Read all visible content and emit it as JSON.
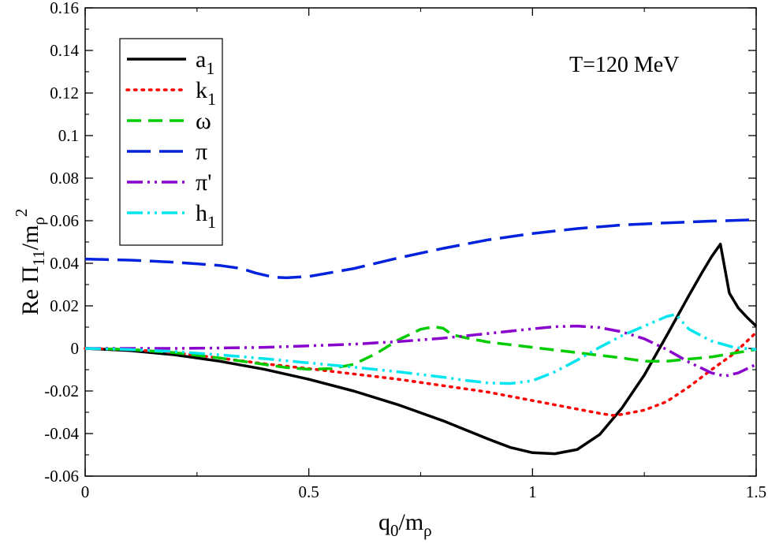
{
  "chart_data": {
    "type": "line",
    "title": "",
    "xlabel": "q0/mρ",
    "ylabel": "Re Π11/mρ2",
    "xlim": [
      0,
      1.5
    ],
    "ylim": [
      -0.06,
      0.16
    ],
    "grid": false,
    "legend_position": "top-left",
    "xticks": [
      0,
      0.5,
      1,
      1.5
    ],
    "xtick_labels": [
      "0",
      "0.5",
      "1",
      "1.5"
    ],
    "yticks": [
      -0.06,
      -0.04,
      -0.02,
      0,
      0.02,
      0.04,
      0.06,
      0.08,
      0.1,
      0.12,
      0.14,
      0.16
    ],
    "ytick_labels": [
      "-0.06",
      "-0.04",
      "-0.02",
      "0",
      "0.02",
      "0.04",
      "0.06",
      "0.08",
      "0.1",
      "0.12",
      "0.14",
      "0.16"
    ],
    "annotation": "T=120 MeV",
    "series": [
      {
        "name": "a1",
        "label_main": "a",
        "label_sub": "1",
        "color": "#000000",
        "dash": "solid",
        "x": [
          0,
          0.1,
          0.2,
          0.3,
          0.4,
          0.5,
          0.6,
          0.7,
          0.8,
          0.9,
          0.95,
          1.0,
          1.05,
          1.1,
          1.15,
          1.2,
          1.25,
          1.3,
          1.35,
          1.38,
          1.4,
          1.42,
          1.44,
          1.46,
          1.48,
          1.5
        ],
        "y": [
          0,
          -0.001,
          -0.003,
          -0.006,
          -0.0098,
          -0.0145,
          -0.02,
          -0.0265,
          -0.034,
          -0.0425,
          -0.0465,
          -0.049,
          -0.0495,
          -0.0475,
          -0.0405,
          -0.028,
          -0.0125,
          0.006,
          0.025,
          0.036,
          0.043,
          0.049,
          0.026,
          0.019,
          0.0145,
          0.0105
        ]
      },
      {
        "name": "k1",
        "label_main": "k",
        "label_sub": "1",
        "color": "#ff0000",
        "dash": "dot",
        "x": [
          0,
          0.1,
          0.2,
          0.3,
          0.4,
          0.5,
          0.6,
          0.7,
          0.8,
          0.9,
          1.0,
          1.05,
          1.1,
          1.15,
          1.18,
          1.2,
          1.25,
          1.3,
          1.35,
          1.4,
          1.45,
          1.5
        ],
        "y": [
          0,
          -0.0005,
          -0.002,
          -0.0045,
          -0.0072,
          -0.0095,
          -0.012,
          -0.0145,
          -0.0175,
          -0.0205,
          -0.0245,
          -0.0265,
          -0.0285,
          -0.0305,
          -0.0315,
          -0.031,
          -0.029,
          -0.025,
          -0.018,
          -0.01,
          -0.0025,
          0.0075
        ]
      },
      {
        "name": "ω",
        "label_main": "ω",
        "label_sub": "",
        "color": "#00cc00",
        "dash": "dash",
        "x": [
          0,
          0.1,
          0.2,
          0.3,
          0.4,
          0.45,
          0.5,
          0.55,
          0.6,
          0.65,
          0.7,
          0.75,
          0.78,
          0.8,
          0.82,
          0.85,
          0.9,
          1.0,
          1.1,
          1.2,
          1.25,
          1.3,
          1.4,
          1.5
        ],
        "y": [
          0,
          -0.0005,
          -0.002,
          -0.0045,
          -0.0075,
          -0.009,
          -0.0098,
          -0.0095,
          -0.0075,
          -0.0025,
          0.004,
          0.009,
          0.0102,
          0.0095,
          0.0065,
          0.005,
          0.003,
          0.0005,
          -0.002,
          -0.0045,
          -0.006,
          -0.006,
          -0.004,
          -0.0005
        ]
      },
      {
        "name": "π",
        "label_main": "π",
        "label_sub": "",
        "color": "#0022dd",
        "dash": "longdash",
        "x": [
          0,
          0.1,
          0.2,
          0.3,
          0.35,
          0.38,
          0.42,
          0.45,
          0.5,
          0.6,
          0.7,
          0.8,
          0.9,
          1.0,
          1.1,
          1.2,
          1.3,
          1.4,
          1.5
        ],
        "y": [
          0.042,
          0.0415,
          0.0405,
          0.039,
          0.0375,
          0.0355,
          0.0335,
          0.0332,
          0.0338,
          0.0375,
          0.0425,
          0.047,
          0.051,
          0.054,
          0.0563,
          0.058,
          0.059,
          0.0598,
          0.0605
        ]
      },
      {
        "name": "π'",
        "label_main": "π'",
        "label_sub": "",
        "color": "#8a00cc",
        "dash": "dashdotdot",
        "x": [
          0,
          0.1,
          0.2,
          0.3,
          0.4,
          0.5,
          0.6,
          0.7,
          0.8,
          0.9,
          1.0,
          1.05,
          1.1,
          1.15,
          1.2,
          1.25,
          1.3,
          1.35,
          1.4,
          1.43,
          1.46,
          1.5
        ],
        "y": [
          0,
          0,
          0,
          0.0002,
          0.0005,
          0.0012,
          0.002,
          0.0032,
          0.0048,
          0.007,
          0.0092,
          0.0102,
          0.0105,
          0.0098,
          0.0078,
          0.0045,
          -0.0005,
          -0.0065,
          -0.0115,
          -0.013,
          -0.0115,
          -0.0075
        ]
      },
      {
        "name": "h1",
        "label_main": "h",
        "label_sub": "1",
        "color": "#00e5ee",
        "dash": "dashdotdot",
        "x": [
          0,
          0.1,
          0.2,
          0.3,
          0.4,
          0.5,
          0.6,
          0.7,
          0.8,
          0.85,
          0.9,
          0.95,
          1.0,
          1.05,
          1.1,
          1.15,
          1.2,
          1.25,
          1.3,
          1.32,
          1.35,
          1.4,
          1.45,
          1.5
        ],
        "y": [
          0,
          -0.0005,
          -0.0015,
          -0.003,
          -0.0048,
          -0.0068,
          -0.0088,
          -0.011,
          -0.0135,
          -0.015,
          -0.0162,
          -0.0165,
          -0.0152,
          -0.011,
          -0.0055,
          0.0005,
          0.006,
          0.0105,
          0.015,
          0.016,
          0.009,
          0.0035,
          0.0005,
          -0.0005
        ]
      }
    ]
  }
}
